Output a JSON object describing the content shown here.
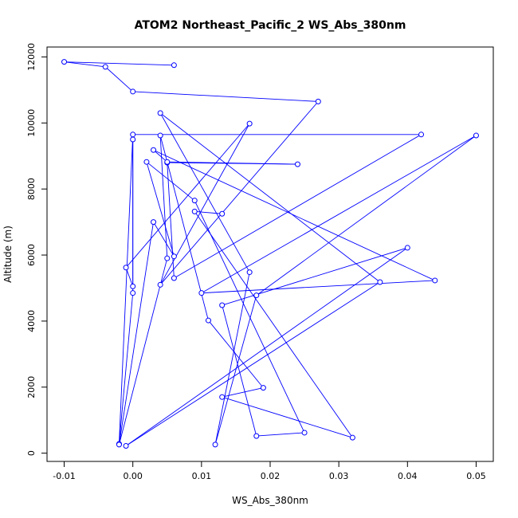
{
  "chart_data": {
    "type": "line",
    "title": "ATOM2 Northeast_Pacific_2 WS_Abs_380nm",
    "xlabel": "WS_Abs_380nm",
    "ylabel": "Altitude (m)",
    "xlim": [
      -0.0125,
      0.0525
    ],
    "ylim": [
      -250,
      12300
    ],
    "x_ticks": [
      -0.01,
      0.0,
      0.01,
      0.02,
      0.03,
      0.04,
      0.05
    ],
    "x_tick_labels": [
      "-0.01",
      "0.00",
      "0.01",
      "0.02",
      "0.03",
      "0.04",
      "0.05"
    ],
    "y_ticks": [
      0,
      2000,
      4000,
      6000,
      8000,
      10000,
      12000
    ],
    "y_tick_labels": [
      "0",
      "2000",
      "4000",
      "6000",
      "8000",
      "10000",
      "12000"
    ],
    "grid": false,
    "marker": "open-circle",
    "series": [
      {
        "color": "#0000ff",
        "points": [
          [
            0.006,
            11750
          ],
          [
            -0.01,
            11850
          ],
          [
            -0.004,
            11700
          ],
          [
            0.0,
            10950
          ],
          [
            0.027,
            10650
          ],
          [
            0.004,
            5100
          ],
          [
            0.017,
            9980
          ],
          [
            -0.001,
            5620
          ],
          [
            0.0,
            5050
          ],
          [
            0.0,
            9500
          ],
          [
            0.0,
            4850
          ],
          [
            -0.002,
            280
          ],
          [
            0.0,
            9650
          ],
          [
            0.042,
            9650
          ],
          [
            0.006,
            5300
          ],
          [
            0.005,
            8800
          ],
          [
            0.024,
            8750
          ],
          [
            0.005,
            8820
          ],
          [
            0.003,
            9180
          ],
          [
            0.044,
            5230
          ],
          [
            0.01,
            4850
          ],
          [
            0.05,
            9620
          ],
          [
            0.018,
            4780
          ],
          [
            0.012,
            260
          ],
          [
            0.017,
            5480
          ],
          [
            0.004,
            10300
          ],
          [
            0.036,
            5180
          ],
          [
            -0.001,
            220
          ],
          [
            0.04,
            6220
          ],
          [
            0.013,
            4480
          ],
          [
            0.018,
            520
          ],
          [
            0.025,
            620
          ],
          [
            0.009,
            7650
          ],
          [
            0.002,
            8820
          ],
          [
            0.006,
            5960
          ],
          [
            0.003,
            7000
          ],
          [
            -0.002,
            260
          ],
          [
            0.005,
            5900
          ],
          [
            0.004,
            9620
          ],
          [
            0.011,
            4020
          ],
          [
            0.019,
            1980
          ],
          [
            0.013,
            1700
          ],
          [
            0.032,
            470
          ],
          [
            0.009,
            7320
          ],
          [
            0.013,
            7250
          ]
        ]
      }
    ]
  }
}
